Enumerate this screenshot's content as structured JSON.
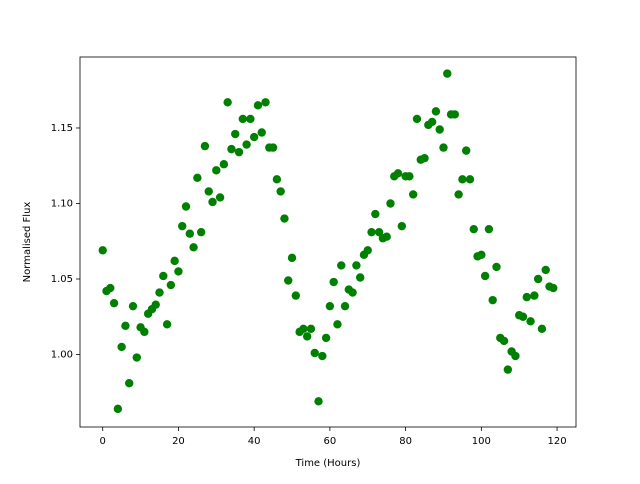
{
  "chart_data": {
    "type": "scatter",
    "x_label": "Time (Hours)",
    "y_label": "Normalised Flux",
    "color": "#008000",
    "grid": false,
    "xlim": [
      -6,
      125
    ],
    "ylim": [
      0.952,
      1.197
    ],
    "xticks": [
      0,
      20,
      40,
      60,
      80,
      100,
      120
    ],
    "yticks": [
      {
        "value": 1,
        "label": "1.00"
      },
      1.05,
      {
        "value": 1.1,
        "label": "1.10"
      },
      1.15
    ],
    "x": [
      0,
      1,
      2,
      3,
      4,
      5,
      6,
      7,
      8,
      9,
      10,
      11,
      12,
      13,
      14,
      15,
      16,
      17,
      18,
      19,
      20,
      21,
      22,
      23,
      24,
      25,
      26,
      27,
      28,
      29,
      30,
      31,
      32,
      33,
      34,
      35,
      36,
      37,
      38,
      39,
      40,
      41,
      42,
      43,
      44,
      45,
      46,
      47,
      48,
      49,
      50,
      51,
      52,
      53,
      54,
      55,
      56,
      57,
      58,
      59,
      60,
      61,
      62,
      63,
      64,
      65,
      66,
      67,
      68,
      69,
      70,
      71,
      72,
      73,
      74,
      75,
      76,
      77,
      78,
      79,
      80,
      81,
      82,
      83,
      84,
      85,
      86,
      87,
      88,
      89,
      90,
      91,
      92,
      93,
      94,
      95,
      96,
      97,
      98,
      99,
      100,
      101,
      102,
      103,
      104,
      105,
      106,
      107,
      108,
      109,
      110,
      111,
      112,
      113,
      114,
      115,
      116,
      117,
      118,
      119
    ],
    "values": [
      1.069,
      1.042,
      1.044,
      1.034,
      0.964,
      1.005,
      1.019,
      0.981,
      1.032,
      0.998,
      1.018,
      1.015,
      1.027,
      1.03,
      1.033,
      1.041,
      1.052,
      1.02,
      1.046,
      1.062,
      1.055,
      1.085,
      1.098,
      1.08,
      1.071,
      1.117,
      1.081,
      1.138,
      1.108,
      1.101,
      1.122,
      1.104,
      1.126,
      1.167,
      1.136,
      1.146,
      1.134,
      1.156,
      1.139,
      1.156,
      1.144,
      1.165,
      1.147,
      1.167,
      1.137,
      1.137,
      1.116,
      1.108,
      1.09,
      1.049,
      1.064,
      1.039,
      1.015,
      1.017,
      1.012,
      1.017,
      1.001,
      0.969,
      0.999,
      1.011,
      1.032,
      1.048,
      1.02,
      1.059,
      1.032,
      1.043,
      1.041,
      1.059,
      1.051,
      1.066,
      1.069,
      1.081,
      1.093,
      1.081,
      1.077,
      1.078,
      1.1,
      1.118,
      1.12,
      1.085,
      1.118,
      1.118,
      1.106,
      1.156,
      1.129,
      1.13,
      1.152,
      1.154,
      1.161,
      1.149,
      1.137,
      1.186,
      1.159,
      1.159,
      1.106,
      1.116,
      1.135,
      1.116,
      1.083,
      1.065,
      1.066,
      1.052,
      1.083,
      1.036,
      1.058,
      1.011,
      1.009,
      0.99,
      1.002,
      0.999,
      1.026,
      1.025,
      1.038,
      1.022,
      1.039,
      1.05,
      1.017,
      1.056,
      1.045,
      1.044
    ]
  }
}
